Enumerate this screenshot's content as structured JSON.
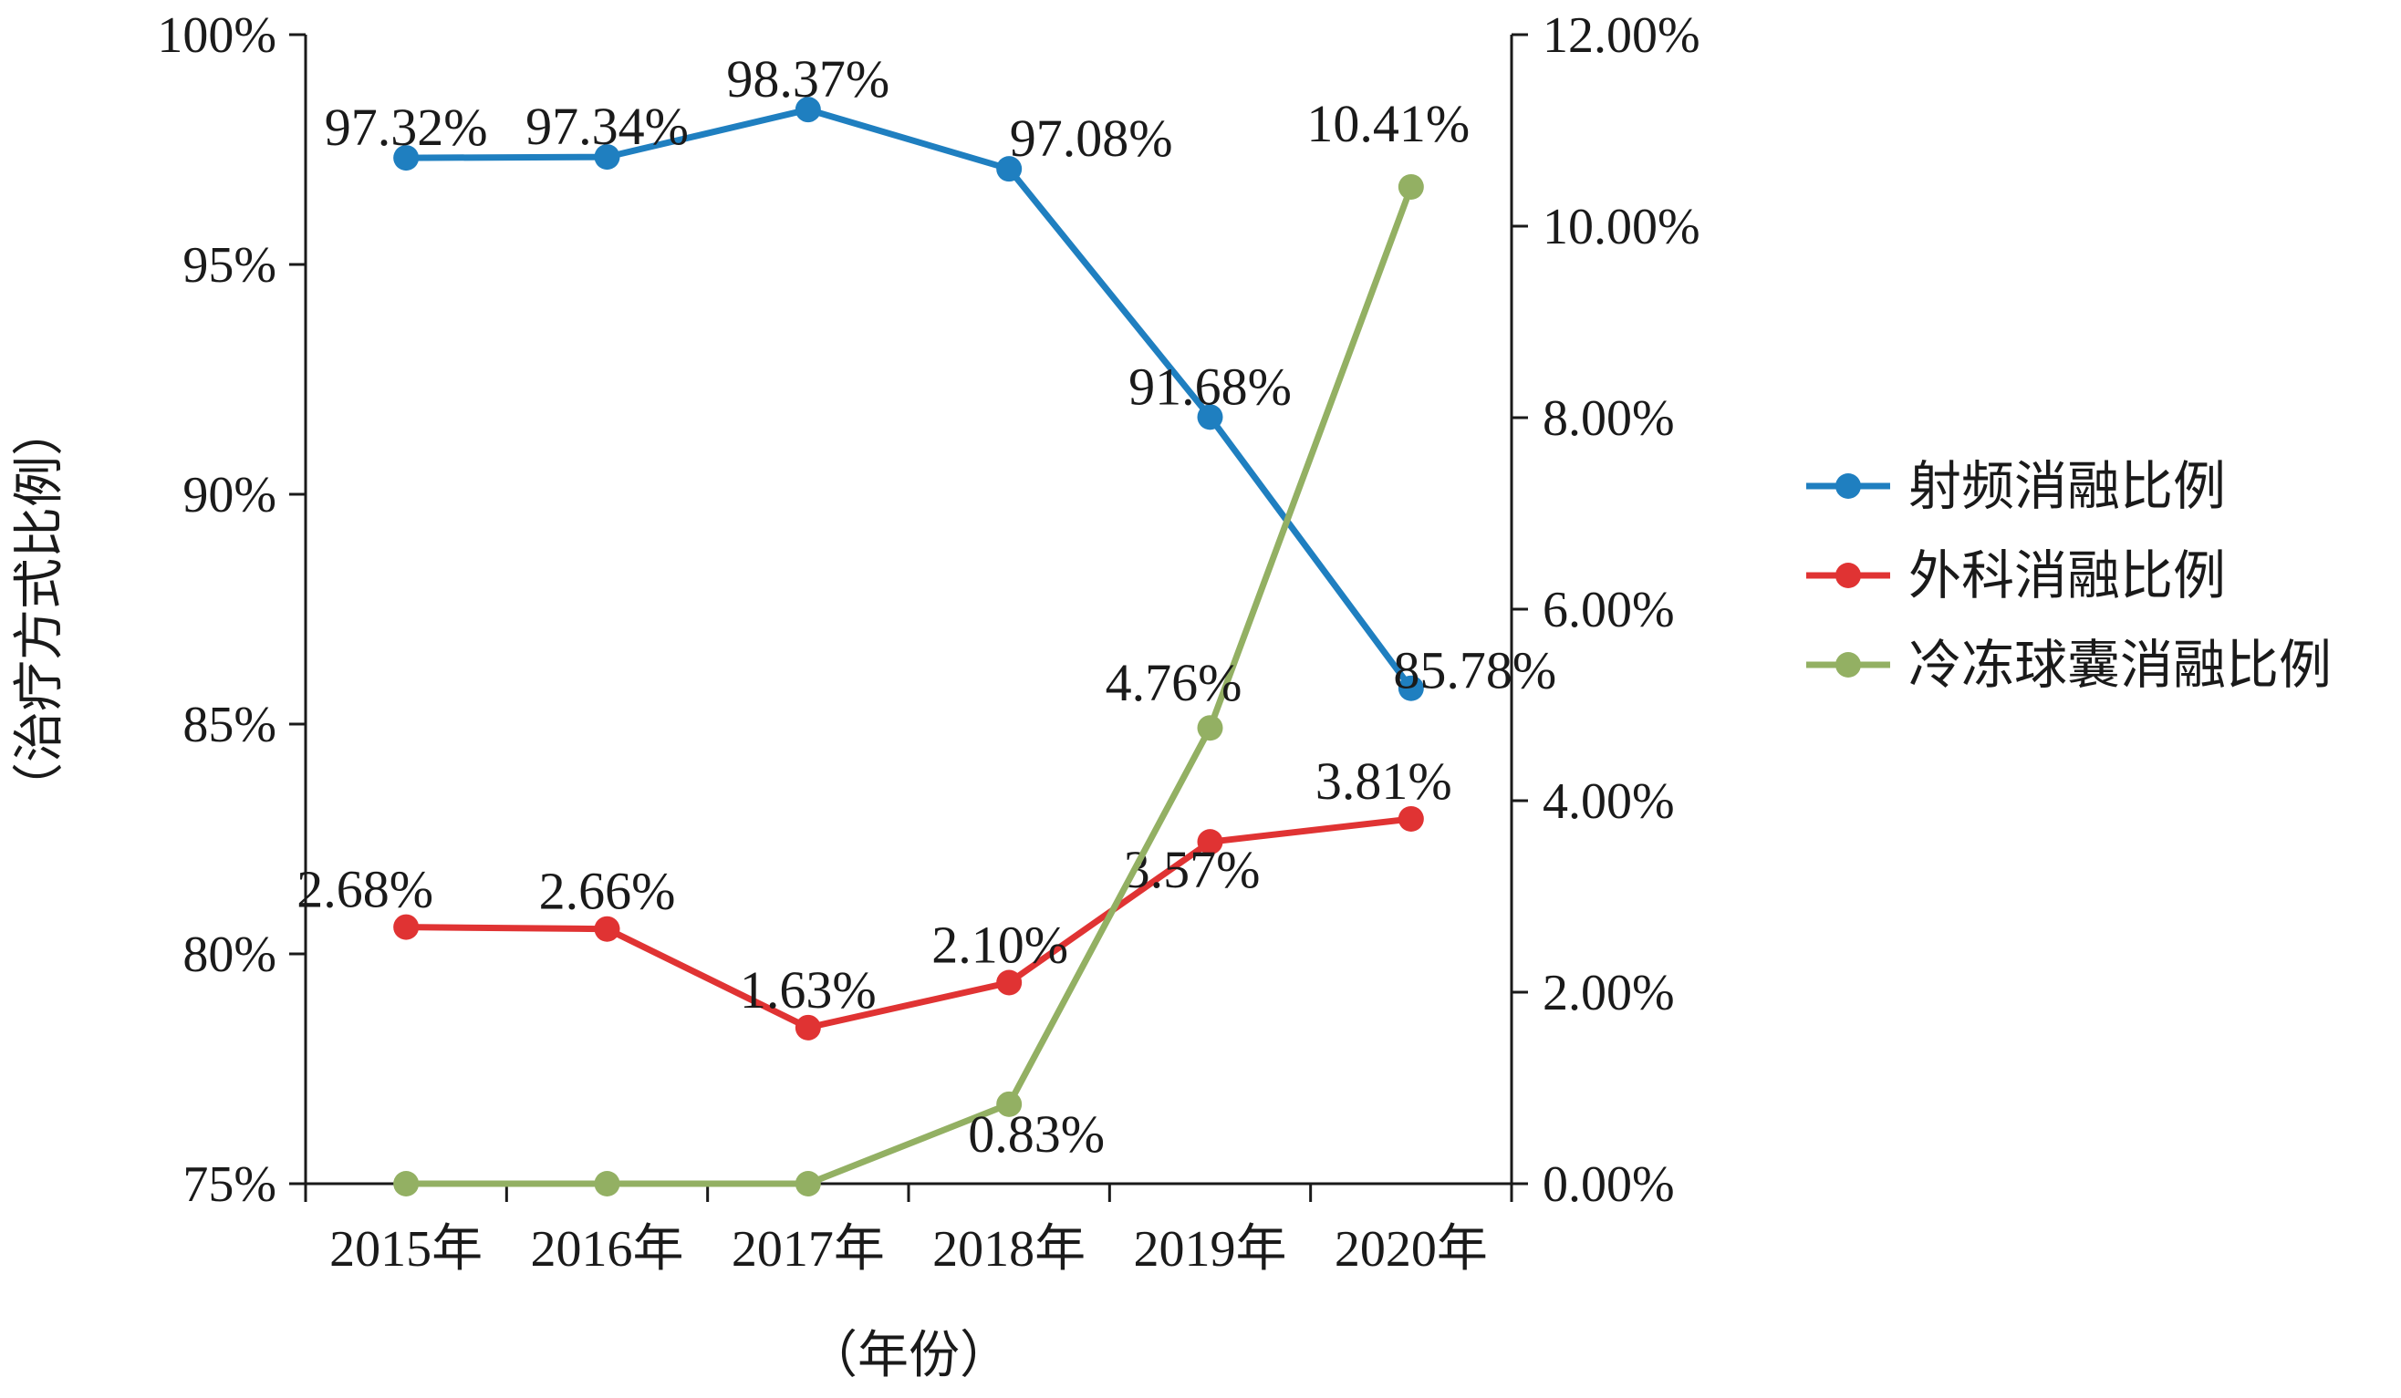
{
  "chart_data": {
    "type": "line",
    "categories": [
      "2015年",
      "2016年",
      "2017年",
      "2018年",
      "2019年",
      "2020年"
    ],
    "xlabel": "（年份）",
    "ylabel": "（治疗方式比例）",
    "left_axis": {
      "ticks": [
        "75%",
        "80%",
        "85%",
        "90%",
        "95%",
        "100%"
      ],
      "ylim": [
        75,
        100
      ]
    },
    "right_axis": {
      "ticks": [
        "0.00%",
        "2.00%",
        "4.00%",
        "6.00%",
        "8.00%",
        "10.00%",
        "12.00%"
      ],
      "ylim": [
        0,
        12
      ]
    },
    "series": [
      {
        "name": "射频消融比例",
        "axis": "left",
        "color": "#1f7fc0",
        "values": [
          97.32,
          97.34,
          98.37,
          97.08,
          91.68,
          85.78
        ],
        "labels": [
          "97.32%",
          "97.34%",
          "98.37%",
          "97.08%",
          "91.68%",
          "85.78%"
        ]
      },
      {
        "name": "外科消融比例",
        "axis": "right",
        "color": "#e03333",
        "values": [
          2.68,
          2.66,
          1.63,
          2.1,
          3.57,
          3.81
        ],
        "labels": [
          "2.68%",
          "2.66%",
          "1.63%",
          "2.10%",
          "3.57%",
          "3.81%"
        ]
      },
      {
        "name": "冷冻球囊消融比例",
        "axis": "right",
        "color": "#93b063",
        "values": [
          0,
          0,
          0,
          0.83,
          4.76,
          10.41
        ],
        "labels": [
          "",
          "",
          "",
          "0.83%",
          "4.76%",
          "10.41%"
        ]
      }
    ],
    "legend_position": "right",
    "grid": false
  }
}
